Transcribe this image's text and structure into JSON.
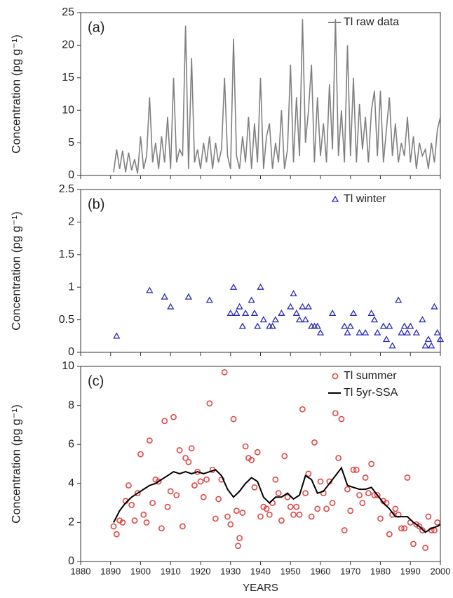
{
  "chart_data": [
    {
      "type": "line",
      "label": "(a)",
      "ylabel": "Concentration (pg g⁻¹)",
      "xlim": [
        1880,
        2000
      ],
      "ylim": [
        0,
        25
      ],
      "yticks": [
        0,
        5,
        10,
        15,
        20,
        25
      ],
      "series": [
        {
          "name": "Tl raw data",
          "type": "line",
          "color": "#808080",
          "x": [
            1891,
            1892,
            1893,
            1894,
            1895,
            1896,
            1897,
            1898,
            1899,
            1900,
            1901,
            1902,
            1903,
            1904,
            1905,
            1906,
            1907,
            1908,
            1909,
            1910,
            1911,
            1912,
            1913,
            1914,
            1915,
            1916,
            1917,
            1918,
            1919,
            1920,
            1921,
            1922,
            1923,
            1924,
            1925,
            1926,
            1927,
            1928,
            1929,
            1930,
            1931,
            1932,
            1933,
            1934,
            1935,
            1936,
            1937,
            1938,
            1939,
            1940,
            1941,
            1942,
            1943,
            1944,
            1945,
            1946,
            1947,
            1948,
            1949,
            1950,
            1951,
            1952,
            1953,
            1954,
            1955,
            1956,
            1957,
            1958,
            1959,
            1960,
            1961,
            1962,
            1963,
            1964,
            1965,
            1966,
            1967,
            1968,
            1969,
            1970,
            1971,
            1972,
            1973,
            1974,
            1975,
            1976,
            1977,
            1978,
            1979,
            1980,
            1981,
            1982,
            1983,
            1984,
            1985,
            1986,
            1987,
            1988,
            1989,
            1990,
            1991,
            1992,
            1993,
            1994,
            1995,
            1996,
            1997,
            1998,
            1999,
            2000
          ],
          "values": [
            0.5,
            4,
            1,
            3.8,
            0.5,
            3.5,
            0.8,
            2.5,
            0.3,
            6,
            1,
            3,
            12,
            2,
            5,
            1,
            6,
            2,
            9,
            1,
            15,
            2,
            4,
            3,
            23,
            1,
            18,
            2,
            4,
            1,
            5,
            2,
            6,
            1,
            5,
            2,
            4,
            15,
            3,
            1,
            21,
            3,
            1,
            6,
            2,
            9,
            1,
            8,
            2,
            15,
            1,
            6,
            8,
            1,
            5,
            2,
            10,
            1,
            4,
            17,
            2,
            12,
            3,
            24,
            5,
            10,
            17,
            2,
            12,
            3,
            8,
            2,
            14,
            4,
            24,
            3,
            10,
            2,
            20,
            3,
            15,
            2,
            11,
            4,
            9,
            2,
            10,
            13,
            3,
            13,
            2,
            7,
            12,
            3,
            8,
            2,
            5,
            3,
            9,
            2,
            6,
            1,
            5,
            3,
            4,
            1,
            5,
            2,
            7,
            9
          ]
        }
      ]
    },
    {
      "type": "scatter",
      "label": "(b)",
      "ylabel": "Concentration (pg g⁻¹)",
      "xlim": [
        1880,
        2000
      ],
      "ylim": [
        0,
        2.5
      ],
      "yticks": [
        0,
        0.5,
        1,
        1.5,
        2,
        2.5
      ],
      "series": [
        {
          "name": "Tl winter",
          "type": "scatter",
          "marker": "triangle",
          "color": "#2a2ab8",
          "x": [
            1892,
            1903,
            1908,
            1910,
            1916,
            1923,
            1930,
            1931,
            1932,
            1933,
            1934,
            1935,
            1937,
            1938,
            1939,
            1940,
            1941,
            1943,
            1944,
            1945,
            1947,
            1950,
            1951,
            1952,
            1953,
            1954,
            1955,
            1956,
            1957,
            1958,
            1959,
            1960,
            1964,
            1968,
            1969,
            1970,
            1971,
            1973,
            1975,
            1977,
            1978,
            1979,
            1981,
            1982,
            1983,
            1984,
            1986,
            1987,
            1988,
            1989,
            1990,
            1992,
            1994,
            1995,
            1996,
            1997,
            1998,
            1999,
            2000
          ],
          "values": [
            0.25,
            0.95,
            0.85,
            0.7,
            0.85,
            0.8,
            0.6,
            1.0,
            0.6,
            0.7,
            0.4,
            0.6,
            0.8,
            0.6,
            0.4,
            1.0,
            0.5,
            0.4,
            0.4,
            0.5,
            0.6,
            0.7,
            0.9,
            0.6,
            0.5,
            0.7,
            0.5,
            0.7,
            0.4,
            0.4,
            0.4,
            0.3,
            0.6,
            0.4,
            0.3,
            0.4,
            0.6,
            0.3,
            0.3,
            0.6,
            0.5,
            0.3,
            0.4,
            0.2,
            0.4,
            0.1,
            0.8,
            0.3,
            0.4,
            0.3,
            0.4,
            0.3,
            0.5,
            0.1,
            0.2,
            0.1,
            0.7,
            0.3,
            0.2
          ]
        }
      ]
    },
    {
      "type": "scatter",
      "label": "(c)",
      "ylabel": "Concentration (pg g⁻¹)",
      "xlabel": "YEARS",
      "xlim": [
        1880,
        2000
      ],
      "xticks": [
        1880,
        1890,
        1900,
        1910,
        1920,
        1930,
        1940,
        1950,
        1960,
        1970,
        1980,
        1990,
        2000
      ],
      "ylim": [
        0,
        10
      ],
      "yticks": [
        0,
        2,
        4,
        6,
        8,
        10
      ],
      "series": [
        {
          "name": "Tl summer",
          "type": "scatter",
          "marker": "circle",
          "color": "#e04848",
          "x": [
            1891,
            1892,
            1893,
            1894,
            1895,
            1896,
            1897,
            1898,
            1899,
            1900,
            1901,
            1902,
            1903,
            1904,
            1905,
            1906,
            1907,
            1908,
            1909,
            1910,
            1911,
            1912,
            1913,
            1914,
            1915,
            1916,
            1917,
            1918,
            1919,
            1920,
            1921,
            1922,
            1923,
            1924,
            1925,
            1926,
            1927,
            1928,
            1929,
            1930,
            1931,
            1932,
            1932.5,
            1933,
            1934,
            1935,
            1936,
            1937,
            1938,
            1939,
            1940,
            1941,
            1942,
            1943,
            1944,
            1945,
            1946,
            1947,
            1948,
            1949,
            1950,
            1951,
            1952,
            1953,
            1954,
            1955,
            1956,
            1957,
            1958,
            1959,
            1960,
            1961,
            1962,
            1963,
            1964,
            1965,
            1966,
            1967,
            1968,
            1969,
            1970,
            1971,
            1972,
            1973,
            1974,
            1975,
            1976,
            1977,
            1978,
            1979,
            1980,
            1981,
            1982,
            1983,
            1984,
            1985,
            1986,
            1987,
            1988,
            1989,
            1990,
            1991,
            1992,
            1993,
            1994,
            1995,
            1996,
            1997,
            1998,
            1999
          ],
          "values": [
            1.8,
            1.4,
            2.1,
            2.0,
            3.1,
            3.9,
            2.9,
            2.1,
            3.5,
            5.5,
            2.4,
            2.0,
            6.2,
            3.0,
            4.2,
            4.1,
            1.7,
            7.2,
            2.8,
            3.6,
            7.4,
            3.4,
            5.7,
            1.8,
            5.3,
            5.1,
            5.8,
            3.9,
            4.6,
            4.1,
            3.3,
            4.2,
            8.1,
            4.7,
            2.2,
            3.2,
            4.2,
            9.7,
            2.3,
            1.9,
            7.3,
            2.6,
            0.8,
            1.2,
            2.5,
            5.9,
            5.3,
            5.2,
            3.8,
            5.6,
            2.3,
            2.8,
            2.7,
            2.4,
            3.0,
            4.2,
            3.5,
            2.1,
            5.4,
            3.3,
            2.8,
            2.4,
            2.8,
            2.4,
            7.8,
            3.5,
            4.5,
            2.3,
            6.1,
            2.7,
            4.1,
            3.5,
            2.7,
            4.1,
            3.0,
            7.6,
            5.3,
            7.3,
            1.6,
            3.7,
            2.6,
            4.7,
            4.7,
            3.4,
            3.0,
            4.3,
            3.5,
            5.0,
            3.4,
            3.4,
            2.2,
            3.1,
            3.0,
            1.4,
            2.4,
            2.7,
            2.4,
            1.7,
            1.7,
            4.3,
            2.0,
            0.9,
            1.9,
            1.8,
            1.6,
            0.7,
            2.3,
            1.6,
            1.6,
            2.0
          ]
        },
        {
          "name": "Tl 5yr-SSA",
          "type": "line",
          "color": "#000000",
          "x": [
            1891,
            1893,
            1895,
            1897,
            1899,
            1901,
            1903,
            1905,
            1907,
            1909,
            1911,
            1913,
            1915,
            1917,
            1919,
            1921,
            1923,
            1925,
            1927,
            1929,
            1931,
            1933,
            1935,
            1937,
            1939,
            1941,
            1943,
            1945,
            1947,
            1949,
            1951,
            1953,
            1955,
            1957,
            1959,
            1961,
            1963,
            1965,
            1967,
            1969,
            1971,
            1973,
            1975,
            1977,
            1979,
            1981,
            1983,
            1985,
            1987,
            1989,
            1991,
            1993,
            1995,
            1997,
            1999,
            2000
          ],
          "values": [
            2.0,
            2.6,
            3.0,
            3.3,
            3.5,
            3.7,
            3.9,
            4.0,
            4.2,
            4.4,
            4.6,
            4.5,
            4.6,
            4.5,
            4.6,
            4.5,
            4.6,
            4.7,
            4.4,
            3.7,
            3.3,
            3.6,
            4.0,
            4.3,
            4.1,
            3.3,
            3.0,
            3.3,
            3.3,
            3.5,
            3.2,
            3.4,
            4.4,
            4.2,
            3.5,
            3.6,
            4.0,
            4.4,
            4.8,
            3.9,
            3.8,
            3.7,
            3.7,
            3.8,
            3.4,
            3.0,
            2.7,
            2.3,
            2.3,
            2.3,
            2.0,
            1.8,
            1.5,
            1.7,
            1.8,
            1.9
          ]
        }
      ]
    }
  ]
}
